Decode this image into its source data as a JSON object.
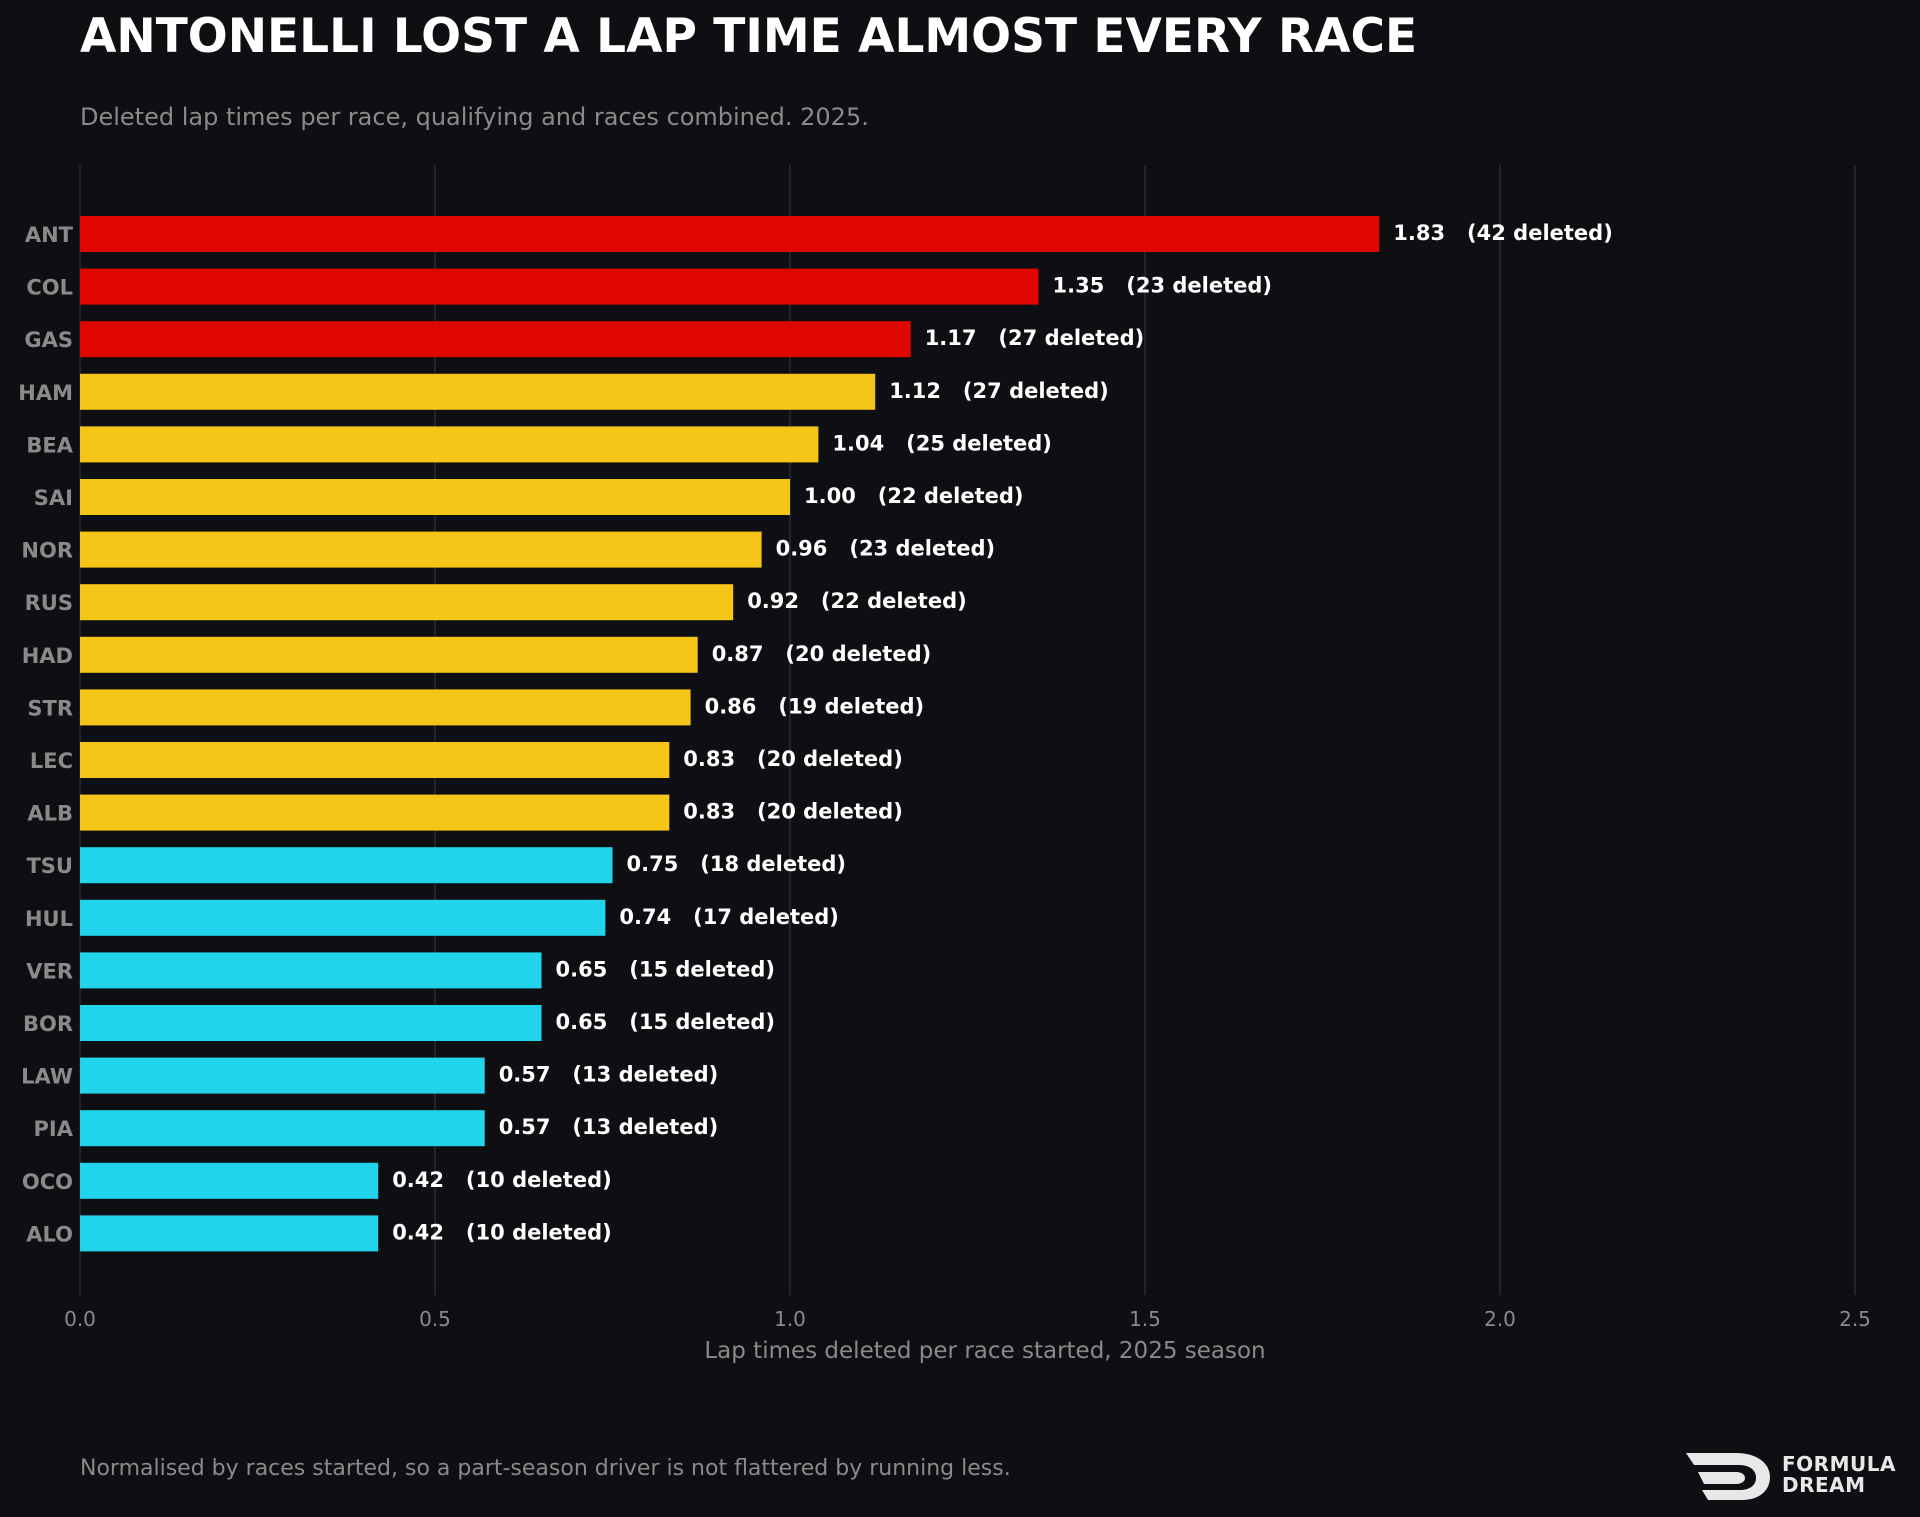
{
  "header": {
    "title": "ANTONELLI LOST A LAP TIME ALMOST EVERY RACE",
    "subtitle": "Deleted lap times per race, qualifying and races combined. 2025."
  },
  "footer": {
    "note": "Normalised by races started, so a part-season driver is not flattered by running less.",
    "logo_line1": "FORMULA",
    "logo_line2": "DREAM"
  },
  "colors": {
    "background": "#0e0f13",
    "high": "#e00600",
    "mid": "#f5c518",
    "low": "#22d3ec",
    "grid": "#2a2b30",
    "label": "#8a8a8a",
    "value_text": "#ffffff"
  },
  "chart_data": {
    "type": "bar",
    "orientation": "horizontal",
    "title": "ANTONELLI LOST A LAP TIME ALMOST EVERY RACE",
    "subtitle": "Deleted lap times per race, qualifying and races combined. 2025.",
    "xlabel": "Lap times deleted per race started, 2025 season",
    "ylabel": "",
    "xlim": [
      0,
      2.5
    ],
    "xticks": [
      "0.0",
      "0.5",
      "1.0",
      "1.5",
      "2.0",
      "2.5"
    ],
    "grid": "vertical",
    "categories": [
      "ANT",
      "COL",
      "GAS",
      "HAM",
      "BEA",
      "SAI",
      "NOR",
      "RUS",
      "HAD",
      "STR",
      "LEC",
      "ALB",
      "TSU",
      "HUL",
      "VER",
      "BOR",
      "LAW",
      "PIA",
      "OCO",
      "ALO"
    ],
    "values": [
      1.83,
      1.35,
      1.17,
      1.12,
      1.04,
      1.0,
      0.96,
      0.92,
      0.87,
      0.86,
      0.83,
      0.83,
      0.75,
      0.74,
      0.65,
      0.65,
      0.57,
      0.57,
      0.42,
      0.42
    ],
    "deleted": [
      42,
      23,
      27,
      27,
      25,
      22,
      23,
      22,
      20,
      19,
      20,
      20,
      18,
      17,
      15,
      15,
      13,
      13,
      10,
      10
    ],
    "bar_labels": [
      "1.83   (42 deleted)",
      "1.35   (23 deleted)",
      "1.17   (27 deleted)",
      "1.12   (27 deleted)",
      "1.04   (25 deleted)",
      "1.00   (22 deleted)",
      "0.96   (23 deleted)",
      "0.92   (22 deleted)",
      "0.87   (20 deleted)",
      "0.86   (19 deleted)",
      "0.83   (20 deleted)",
      "0.83   (20 deleted)",
      "0.75   (18 deleted)",
      "0.74   (17 deleted)",
      "0.65   (15 deleted)",
      "0.65   (15 deleted)",
      "0.57   (13 deleted)",
      "0.57   (13 deleted)",
      "0.42   (10 deleted)",
      "0.42   (10 deleted)"
    ],
    "bar_colors": [
      "#e00600",
      "#e00600",
      "#e00600",
      "#f5c518",
      "#f5c518",
      "#f5c518",
      "#f5c518",
      "#f5c518",
      "#f5c518",
      "#f5c518",
      "#f5c518",
      "#f5c518",
      "#22d3ec",
      "#22d3ec",
      "#22d3ec",
      "#22d3ec",
      "#22d3ec",
      "#22d3ec",
      "#22d3ec",
      "#22d3ec"
    ]
  }
}
